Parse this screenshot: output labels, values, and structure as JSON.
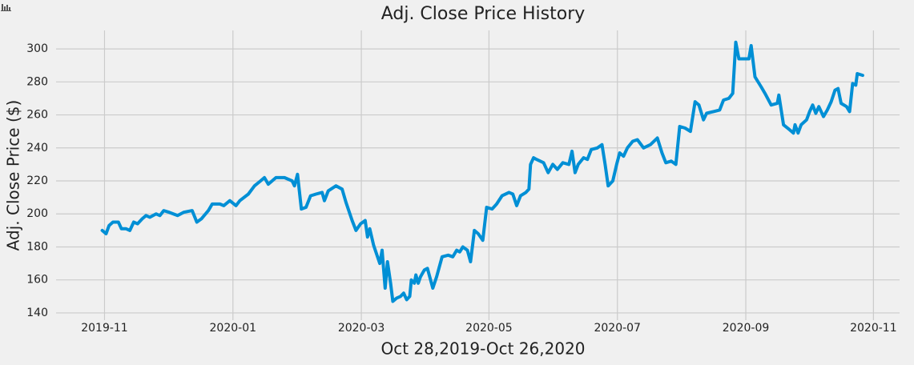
{
  "chart_data": {
    "type": "line",
    "title": "Adj. Close Price History",
    "x_label": "Oct 28,2019-Oct 26,2020",
    "y_label": "Adj. Close Price ($)",
    "color": "#008fd5",
    "grid": true,
    "x": [
      2019.83,
      2019.835,
      2019.839,
      2019.844,
      2019.851,
      2019.855,
      2019.861,
      2019.866,
      2019.871,
      2019.876,
      2019.882,
      2019.887,
      2019.892,
      2019.9,
      2019.905,
      2019.91,
      2019.917,
      2019.928,
      2019.936,
      2019.947,
      2019.953,
      2019.959,
      2019.968,
      2019.973,
      2019.983,
      2019.988,
      2019.996,
      2020.004,
      2020.009,
      2020.02,
      2020.028,
      2020.036,
      2020.041,
      2020.046,
      2020.056,
      2020.067,
      2020.077,
      2020.08,
      2020.084,
      2020.089,
      2020.095,
      2020.101,
      2020.108,
      2020.116,
      2020.119,
      2020.124,
      2020.134,
      2020.142,
      2020.147,
      2020.155,
      2020.16,
      2020.166,
      2020.172,
      2020.175,
      2020.178,
      2020.183,
      2020.191,
      2020.194,
      2020.198,
      2020.201,
      2020.205,
      2020.208,
      2020.213,
      2020.218,
      2020.222,
      2020.226,
      2020.23,
      2020.232,
      2020.236,
      2020.238,
      2020.241,
      2020.244,
      2020.249,
      2020.253,
      2020.26,
      2020.265,
      2020.272,
      2020.28,
      2020.286,
      2020.291,
      2020.295,
      2020.299,
      2020.305,
      2020.309,
      2020.314,
      2020.319,
      2020.325,
      2020.33,
      2020.337,
      2020.343,
      2020.35,
      2020.359,
      2020.364,
      2020.369,
      2020.374,
      2020.381,
      2020.385,
      2020.387,
      2020.391,
      2020.395,
      2020.404,
      2020.41,
      2020.416,
      2020.422,
      2020.429,
      2020.437,
      2020.441,
      2020.445,
      2020.449,
      2020.456,
      2020.461,
      2020.466,
      2020.474,
      2020.48,
      2020.484,
      2020.488,
      2020.494,
      2020.499,
      2020.503,
      2020.508,
      2020.513,
      2020.52,
      2020.526,
      2020.534,
      2020.543,
      2020.552,
      2020.558,
      2020.563,
      2020.57,
      2020.576,
      2020.581,
      2020.588,
      2020.595,
      2020.601,
      2020.606,
      2020.612,
      2020.616,
      2020.625,
      2020.633,
      2020.638,
      2020.645,
      2020.65,
      2020.654,
      2020.658,
      2020.666,
      2020.671,
      2020.674,
      2020.679,
      2020.687,
      2020.692,
      2020.7,
      2020.708,
      2020.71,
      2020.716,
      2020.724,
      2020.729,
      2020.731,
      2020.735,
      2020.739,
      2020.746,
      2020.75,
      2020.754,
      2020.758,
      2020.762,
      2020.768,
      2020.773,
      2020.778,
      2020.783,
      2020.787,
      2020.791,
      2020.798,
      2020.802,
      2020.806,
      2020.81,
      2020.812,
      2020.819
    ],
    "values": [
      190,
      188,
      193,
      195,
      195,
      191,
      191,
      190,
      195,
      194,
      197,
      199,
      198,
      200,
      199,
      202,
      201,
      199,
      201,
      202,
      195,
      197,
      202,
      206,
      206,
      205,
      208,
      205,
      208,
      212,
      217,
      220,
      222,
      218,
      222,
      222,
      220,
      217,
      224,
      203,
      204,
      211,
      212,
      213,
      208,
      214,
      217,
      215,
      207,
      196,
      190,
      194,
      196,
      186,
      191,
      181,
      170,
      178,
      155,
      171,
      158,
      147,
      149,
      150,
      152,
      148,
      150,
      160,
      158,
      163,
      158,
      162,
      166,
      167,
      155,
      162,
      174,
      175,
      174,
      178,
      177,
      180,
      178,
      171,
      190,
      188,
      184,
      204,
      203,
      206,
      211,
      213,
      212,
      205,
      211,
      213,
      215,
      230,
      234,
      233,
      231,
      225,
      230,
      227,
      231,
      230,
      238,
      225,
      230,
      234,
      233,
      239,
      240,
      242,
      230,
      217,
      220,
      230,
      237,
      235,
      240,
      244,
      245,
      240,
      242,
      246,
      237,
      231,
      232,
      230,
      253,
      252,
      250,
      268,
      266,
      257,
      261,
      262,
      263,
      269,
      270,
      273,
      304,
      294,
      294,
      294,
      302,
      283,
      277,
      273,
      266,
      267,
      272,
      254,
      251,
      249,
      254,
      249,
      254,
      257,
      262,
      266,
      261,
      265,
      259,
      263,
      268,
      275,
      276,
      267,
      265,
      262,
      279,
      278,
      285,
      284
    ],
    "xlim": [
      2019.77,
      2020.867
    ],
    "xticks": [
      {
        "value": 2019.833,
        "label": "2019-11"
      },
      {
        "value": 2020.0,
        "label": "2020-01"
      },
      {
        "value": 2020.167,
        "label": "2020-03"
      },
      {
        "value": 2020.333,
        "label": "2020-05"
      },
      {
        "value": 2020.5,
        "label": "2020-07"
      },
      {
        "value": 2020.667,
        "label": "2020-09"
      },
      {
        "value": 2020.833,
        "label": "2020-11"
      }
    ],
    "ylim": [
      135.6,
      311.2
    ],
    "yticks": [
      140,
      160,
      180,
      200,
      220,
      240,
      260,
      280,
      300
    ]
  }
}
